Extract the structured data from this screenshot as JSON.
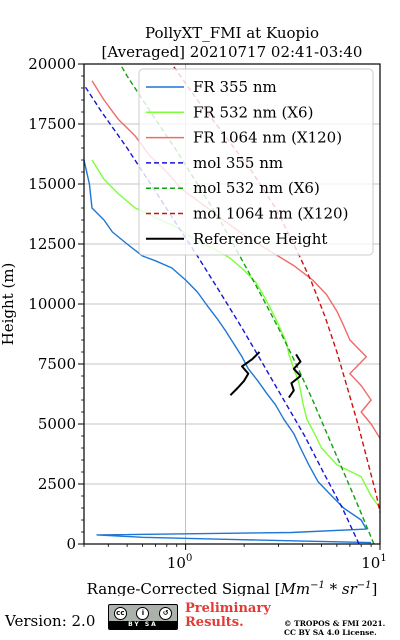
{
  "chart_data": {
    "type": "line",
    "title_line1": "PollyXT_FMI at Kuopio",
    "title_line2": "[Averaged] 20210717 02:41-03:40",
    "xlabel": "Range-Corrected Signal [",
    "xlabel_unit": "Mm",
    "xlabel_unit_sup": "−1",
    "xlabel_mid": " * sr",
    "xlabel_mid_sup": "−1",
    "xlabel_end": "]",
    "ylabel": "Height (m)",
    "xscale": "log",
    "xlim": [
      0.3,
      10
    ],
    "ylim": [
      0,
      20000
    ],
    "xtick_labels": [
      {
        "base": "10",
        "exp": "0"
      },
      {
        "base": "10",
        "exp": "1"
      }
    ],
    "ytick_labels": [
      "0",
      "2500",
      "5000",
      "7500",
      "10000",
      "12500",
      "15000",
      "17500",
      "20000"
    ],
    "grid": true,
    "legend_placement": "top-right",
    "series": [
      {
        "name": "FR 355 nm",
        "color": "#1f77d4",
        "style": "solid",
        "points": [
          [
            9.0,
            60
          ],
          [
            4.0,
            120
          ],
          [
            1.5,
            200
          ],
          [
            0.6,
            280
          ],
          [
            0.35,
            380
          ],
          [
            3.5,
            480
          ],
          [
            8.5,
            620
          ],
          [
            8.0,
            1000
          ],
          [
            6.5,
            1500
          ],
          [
            5.5,
            2100
          ],
          [
            4.8,
            2600
          ],
          [
            4.3,
            3300
          ],
          [
            3.9,
            4000
          ],
          [
            3.6,
            4600
          ],
          [
            3.2,
            5200
          ],
          [
            2.9,
            5800
          ],
          [
            2.6,
            6300
          ],
          [
            2.35,
            6800
          ],
          [
            2.1,
            7300
          ],
          [
            1.95,
            7800
          ],
          [
            1.75,
            8400
          ],
          [
            1.6,
            8900
          ],
          [
            1.45,
            9400
          ],
          [
            1.3,
            9900
          ],
          [
            1.15,
            10500
          ],
          [
            1.0,
            11000
          ],
          [
            0.85,
            11500
          ],
          [
            0.7,
            11800
          ],
          [
            0.6,
            12000
          ],
          [
            0.5,
            12500
          ],
          [
            0.42,
            13000
          ],
          [
            0.38,
            13500
          ],
          [
            0.33,
            14000
          ],
          [
            0.32,
            15000
          ],
          [
            0.3,
            16000
          ]
        ]
      },
      {
        "name": "FR 532 nm (X6)",
        "color": "#7dff3c",
        "style": "solid",
        "points": [
          [
            10.0,
            1500
          ],
          [
            9.0,
            2000
          ],
          [
            8.0,
            2800
          ],
          [
            6.0,
            3300
          ],
          [
            5.0,
            4000
          ],
          [
            4.6,
            4600
          ],
          [
            4.2,
            5200
          ],
          [
            4.0,
            5900
          ],
          [
            3.9,
            6400
          ],
          [
            3.8,
            6800
          ],
          [
            3.6,
            7300
          ],
          [
            3.4,
            7900
          ],
          [
            3.3,
            8400
          ],
          [
            3.1,
            8900
          ],
          [
            2.9,
            9400
          ],
          [
            2.7,
            9900
          ],
          [
            2.5,
            10400
          ],
          [
            2.3,
            10900
          ],
          [
            2.0,
            11400
          ],
          [
            1.7,
            11900
          ],
          [
            1.4,
            12300
          ],
          [
            1.1,
            12700
          ],
          [
            0.9,
            13200
          ],
          [
            0.7,
            13600
          ],
          [
            0.55,
            14000
          ],
          [
            0.45,
            14600
          ],
          [
            0.38,
            15200
          ],
          [
            0.33,
            16000
          ]
        ]
      },
      {
        "name": "FR 1064 nm (X120)",
        "color": "#f06a6a",
        "style": "solid",
        "points": [
          [
            10.0,
            4400
          ],
          [
            9.0,
            5000
          ],
          [
            8.0,
            5500
          ],
          [
            9.0,
            6000
          ],
          [
            8.0,
            6600
          ],
          [
            7.0,
            7100
          ],
          [
            8.5,
            7800
          ],
          [
            7.0,
            8500
          ],
          [
            6.5,
            9100
          ],
          [
            6.0,
            9700
          ],
          [
            5.3,
            10400
          ],
          [
            4.5,
            11000
          ],
          [
            3.6,
            11600
          ],
          [
            2.6,
            12300
          ],
          [
            1.9,
            13000
          ],
          [
            1.5,
            13600
          ],
          [
            1.2,
            14200
          ],
          [
            0.95,
            14800
          ],
          [
            0.8,
            15500
          ],
          [
            0.65,
            16200
          ],
          [
            0.55,
            17000
          ],
          [
            0.45,
            17700
          ],
          [
            0.38,
            18500
          ],
          [
            0.33,
            19300
          ]
        ]
      },
      {
        "name": "mol 355 nm",
        "color": "#1515d6",
        "style": "dashed",
        "points": [
          [
            7.8,
            0
          ],
          [
            6.4,
            1500
          ],
          [
            5.1,
            3000
          ],
          [
            4.1,
            4500
          ],
          [
            3.2,
            6000
          ],
          [
            2.5,
            7500
          ],
          [
            1.95,
            9000
          ],
          [
            1.5,
            10500
          ],
          [
            1.15,
            12000
          ],
          [
            0.87,
            13500
          ],
          [
            0.66,
            15000
          ],
          [
            0.5,
            16500
          ],
          [
            0.37,
            18000
          ],
          [
            0.28,
            19500
          ]
        ]
      },
      {
        "name": "mol 532 nm (X6)",
        "color": "#10a010",
        "style": "dashed",
        "points": [
          [
            9.3,
            0
          ],
          [
            7.8,
            1500
          ],
          [
            6.5,
            3000
          ],
          [
            5.4,
            4500
          ],
          [
            4.5,
            6000
          ],
          [
            3.7,
            7500
          ],
          [
            3.0,
            9000
          ],
          [
            2.4,
            10500
          ],
          [
            1.9,
            12000
          ],
          [
            1.5,
            13500
          ],
          [
            1.15,
            15000
          ],
          [
            0.88,
            16500
          ],
          [
            0.66,
            18000
          ],
          [
            0.5,
            19500
          ],
          [
            0.46,
            20000
          ]
        ]
      },
      {
        "name": "mol 1064 nm (X120)",
        "color": "#d01010",
        "style": "dashed",
        "points": [
          [
            10.5,
            500
          ],
          [
            9.6,
            2000
          ],
          [
            8.6,
            3500
          ],
          [
            7.7,
            5000
          ],
          [
            6.8,
            6500
          ],
          [
            6.0,
            8000
          ],
          [
            5.2,
            9500
          ],
          [
            4.4,
            11000
          ],
          [
            3.6,
            12500
          ],
          [
            2.9,
            14000
          ],
          [
            2.2,
            15500
          ],
          [
            1.6,
            17000
          ],
          [
            1.15,
            18500
          ],
          [
            0.85,
            20000
          ]
        ]
      },
      {
        "name": "Reference Height",
        "color": "#000000",
        "style": "solid",
        "segments": [
          [
            [
              1.7,
              6200
            ],
            [
              1.85,
              6500
            ],
            [
              2.0,
              6800
            ],
            [
              2.1,
              7100
            ],
            [
              1.95,
              7400
            ],
            [
              2.2,
              7700
            ],
            [
              2.4,
              8000
            ]
          ],
          [
            [
              3.4,
              6100
            ],
            [
              3.6,
              6400
            ],
            [
              3.5,
              6700
            ],
            [
              3.9,
              7000
            ],
            [
              3.6,
              7300
            ],
            [
              3.9,
              7600
            ],
            [
              3.7,
              7900
            ]
          ]
        ]
      }
    ]
  },
  "footer": {
    "version": "Version: 2.0",
    "cc_by_sa": "BY  SA",
    "preliminary_line1": "Preliminary",
    "preliminary_line2": "Results.",
    "copyright_line1": "© TROPOS & FMI 2021.",
    "copyright_line2": "CC BY SA 4.0 License."
  }
}
